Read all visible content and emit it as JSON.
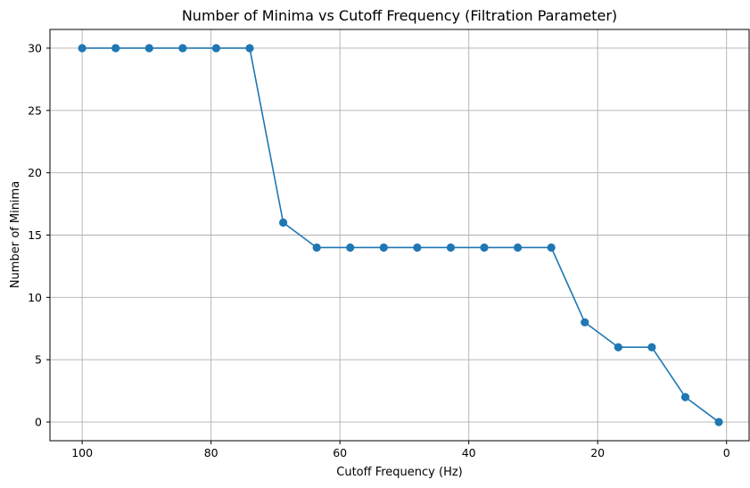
{
  "chart_data": {
    "type": "line",
    "title": "Number of Minima vs Cutoff Frequency (Filtration Parameter)",
    "xlabel": "Cutoff Frequency (Hz)",
    "ylabel": "Number of Minima",
    "x_inverted": true,
    "xlim": [
      105,
      -3.5
    ],
    "ylim": [
      -1.5,
      31.5
    ],
    "x_ticks": [
      100,
      80,
      60,
      40,
      20,
      0
    ],
    "y_ticks": [
      0,
      5,
      10,
      15,
      20,
      25,
      30
    ],
    "grid": true,
    "marker": "circle",
    "series": [
      {
        "color": "#1f77b4",
        "x": [
          100,
          94.8,
          89.6,
          84.4,
          79.2,
          74.0,
          68.8,
          63.6,
          58.4,
          53.2,
          48.0,
          42.8,
          37.6,
          32.4,
          27.2,
          22.0,
          16.8,
          11.6,
          6.4,
          1.2
        ],
        "y": [
          30,
          30,
          30,
          30,
          30,
          30,
          16,
          14,
          14,
          14,
          14,
          14,
          14,
          14,
          14,
          8,
          6,
          6,
          2,
          0
        ]
      }
    ]
  }
}
